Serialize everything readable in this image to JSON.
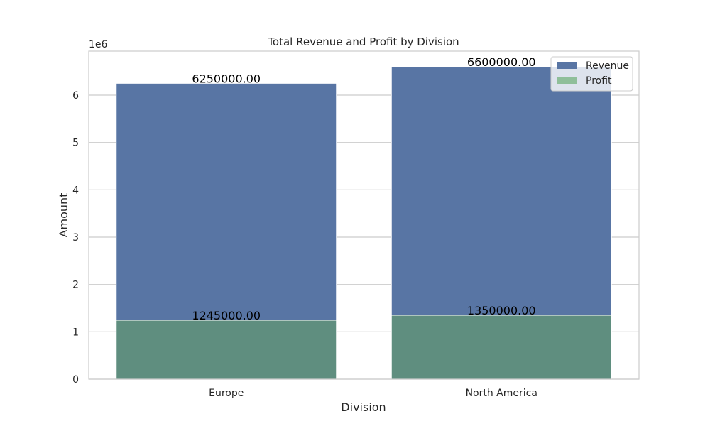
{
  "chart_data": {
    "type": "bar",
    "title": "Total Revenue and Profit by Division",
    "xlabel": "Division",
    "ylabel": "Amount",
    "y_offset_label": "1e6",
    "categories": [
      "Europe",
      "North America"
    ],
    "series": [
      {
        "name": "Revenue",
        "color": "#5875a4",
        "values": [
          6250000,
          6600000
        ],
        "labels": [
          "6250000.00",
          "6600000.00"
        ]
      },
      {
        "name": "Profit",
        "color": "#5f8e7f",
        "legend_color": "#8fbf9a",
        "values": [
          1245000,
          1350000
        ],
        "labels": [
          "1245000.00",
          "1350000.00"
        ]
      }
    ],
    "overlay": true,
    "ylim": [
      0,
      6930000
    ],
    "yticks": [
      0,
      1,
      2,
      3,
      4,
      5,
      6
    ],
    "ytick_unit": 1000000,
    "grid": "y",
    "legend": "top-right"
  }
}
